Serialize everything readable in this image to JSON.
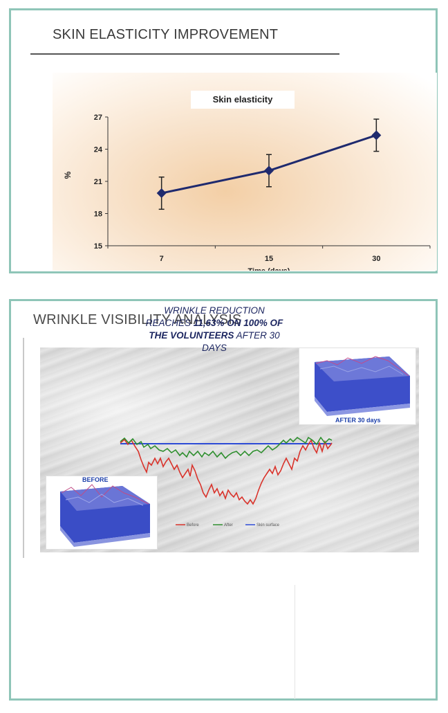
{
  "section1": {
    "title": "SKIN ELASTICITY IMPROVEMENT"
  },
  "section2": {
    "title": "WRINKLE VISIBILITY ANALYSIS",
    "after_label": "AFTER 30 days",
    "before_label": "BEFORE",
    "legend": [
      "Before",
      "After",
      "Skin surface"
    ],
    "caption": {
      "p1": "WRINKLE REDUCTION REACHES ",
      "p2": "11,63% ON 100% OF THE VOLUNTEERS",
      "p3": " AFTER 30 DAYS"
    }
  },
  "chart_data": {
    "type": "line",
    "title": "Skin elasticity",
    "xlabel": "Time (days)",
    "ylabel": "%",
    "categories": [
      "7",
      "15",
      "30"
    ],
    "values": [
      19.9,
      22.0,
      25.3
    ],
    "error_bars": [
      1.5,
      1.5,
      1.5
    ],
    "ylim": [
      15,
      27
    ],
    "yticks": [
      15,
      18,
      21,
      24,
      27
    ],
    "grid": false,
    "line_color": "#1f2a6e"
  }
}
